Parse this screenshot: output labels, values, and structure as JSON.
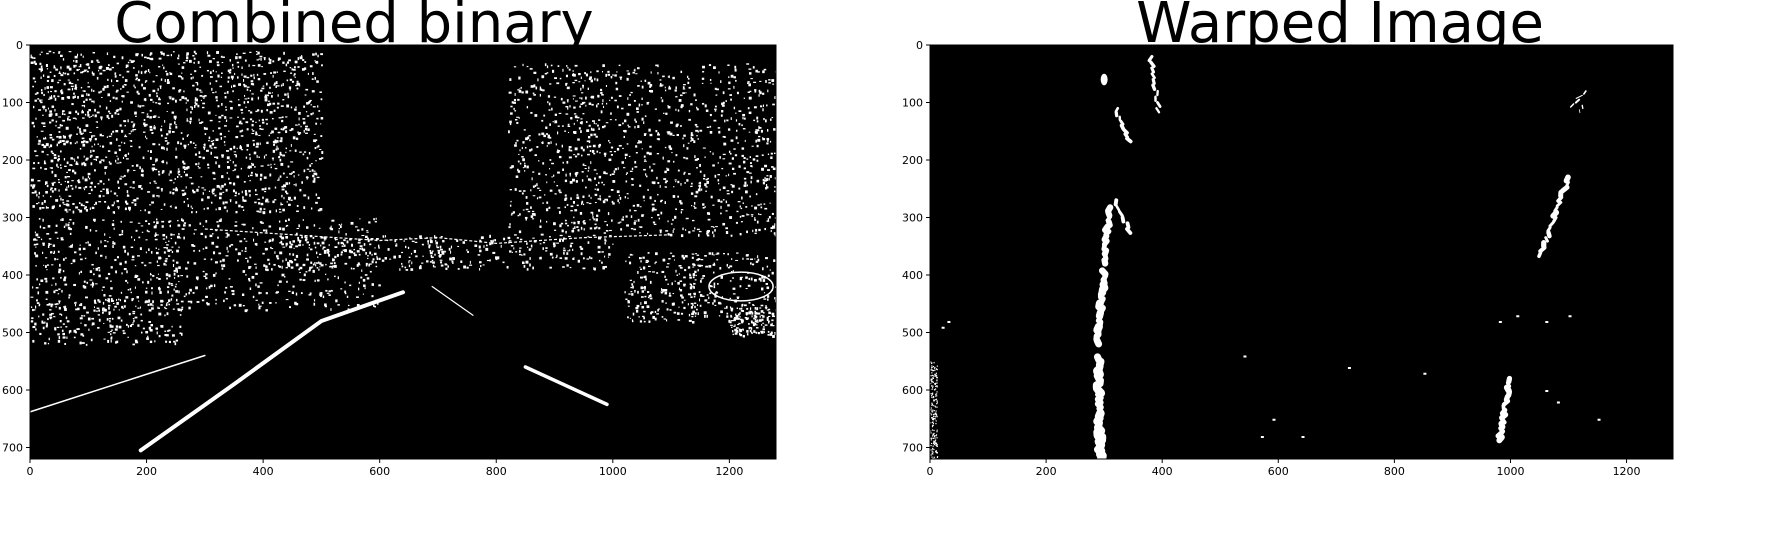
{
  "panels": [
    {
      "title": "Combined  binary",
      "x_ticks": [
        "0",
        "200",
        "400",
        "600",
        "800",
        "1000",
        "1200"
      ],
      "y_ticks": [
        "0",
        "100",
        "200",
        "300",
        "400",
        "500",
        "600",
        "700"
      ]
    },
    {
      "title": "Warped Image",
      "x_ticks": [
        "0",
        "200",
        "400",
        "600",
        "800",
        "1000",
        "1200"
      ],
      "y_ticks": [
        "0",
        "100",
        "200",
        "300",
        "400",
        "500",
        "600",
        "700"
      ]
    }
  ],
  "colors": {
    "image_bg": "#000000",
    "feature": "#ffffff",
    "page_bg": "#ffffff"
  },
  "image_extent": {
    "x": [
      0,
      1280
    ],
    "y": [
      0,
      720
    ]
  }
}
